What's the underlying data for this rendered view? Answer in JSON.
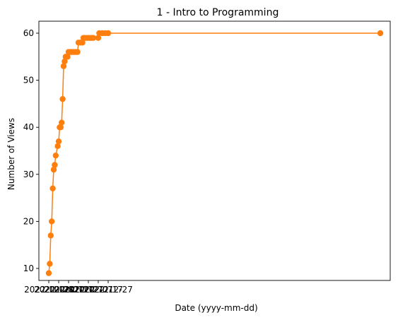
{
  "chart_data": {
    "type": "line",
    "title": "1 - Intro to Programming",
    "xlabel": "Date (yyyy-mm-dd)",
    "ylabel": "Number of Views",
    "ylim": [
      7.45,
      62.55
    ],
    "yticks": [
      10,
      20,
      30,
      40,
      50,
      60
    ],
    "xticks": [
      {
        "label": "2022-10-28",
        "x": "2022-10-28"
      },
      {
        "label": "2022-11-07",
        "x": "2022-11-07"
      },
      {
        "label": "2022-11-17",
        "x": "2022-11-17"
      },
      {
        "label": "2022-11-27",
        "x": "2022-11-27"
      },
      {
        "label": "2022-12-07",
        "x": "2022-12-07"
      },
      {
        "label": "2022-12-17",
        "x": "2022-12-17"
      },
      {
        "label": "2022-12-27",
        "x": "2022-12-27"
      }
    ],
    "xlim": [
      "2022-10-18",
      "2023-10-08"
    ],
    "grid": false,
    "series": [
      {
        "color": "#ff7f0e",
        "points": [
          {
            "x": "2022-10-28",
            "y": 9
          },
          {
            "x": "2022-10-29",
            "y": 11
          },
          {
            "x": "2022-10-30",
            "y": 17
          },
          {
            "x": "2022-10-31",
            "y": 20
          },
          {
            "x": "2022-11-01",
            "y": 27
          },
          {
            "x": "2022-11-02",
            "y": 31
          },
          {
            "x": "2022-11-03",
            "y": 32
          },
          {
            "x": "2022-11-04",
            "y": 34
          },
          {
            "x": "2022-11-06",
            "y": 36
          },
          {
            "x": "2022-11-07",
            "y": 37
          },
          {
            "x": "2022-11-08",
            "y": 40
          },
          {
            "x": "2022-11-09",
            "y": 40
          },
          {
            "x": "2022-11-10",
            "y": 41
          },
          {
            "x": "2022-11-11",
            "y": 46
          },
          {
            "x": "2022-11-12",
            "y": 53
          },
          {
            "x": "2022-11-13",
            "y": 54
          },
          {
            "x": "2022-11-14",
            "y": 55
          },
          {
            "x": "2022-11-16",
            "y": 55
          },
          {
            "x": "2022-11-17",
            "y": 56
          },
          {
            "x": "2022-11-18",
            "y": 56
          },
          {
            "x": "2022-11-20",
            "y": 56
          },
          {
            "x": "2022-11-22",
            "y": 56
          },
          {
            "x": "2022-11-24",
            "y": 56
          },
          {
            "x": "2022-11-26",
            "y": 56
          },
          {
            "x": "2022-11-27",
            "y": 58
          },
          {
            "x": "2022-11-29",
            "y": 58
          },
          {
            "x": "2022-12-01",
            "y": 58
          },
          {
            "x": "2022-12-02",
            "y": 59
          },
          {
            "x": "2022-12-04",
            "y": 59
          },
          {
            "x": "2022-12-06",
            "y": 59
          },
          {
            "x": "2022-12-08",
            "y": 59
          },
          {
            "x": "2022-12-10",
            "y": 59
          },
          {
            "x": "2022-12-12",
            "y": 59
          },
          {
            "x": "2022-12-17",
            "y": 59
          },
          {
            "x": "2022-12-18",
            "y": 60
          },
          {
            "x": "2022-12-21",
            "y": 60
          },
          {
            "x": "2022-12-24",
            "y": 60
          },
          {
            "x": "2022-12-27",
            "y": 60
          },
          {
            "x": "2023-09-28",
            "y": 60
          }
        ]
      }
    ]
  }
}
